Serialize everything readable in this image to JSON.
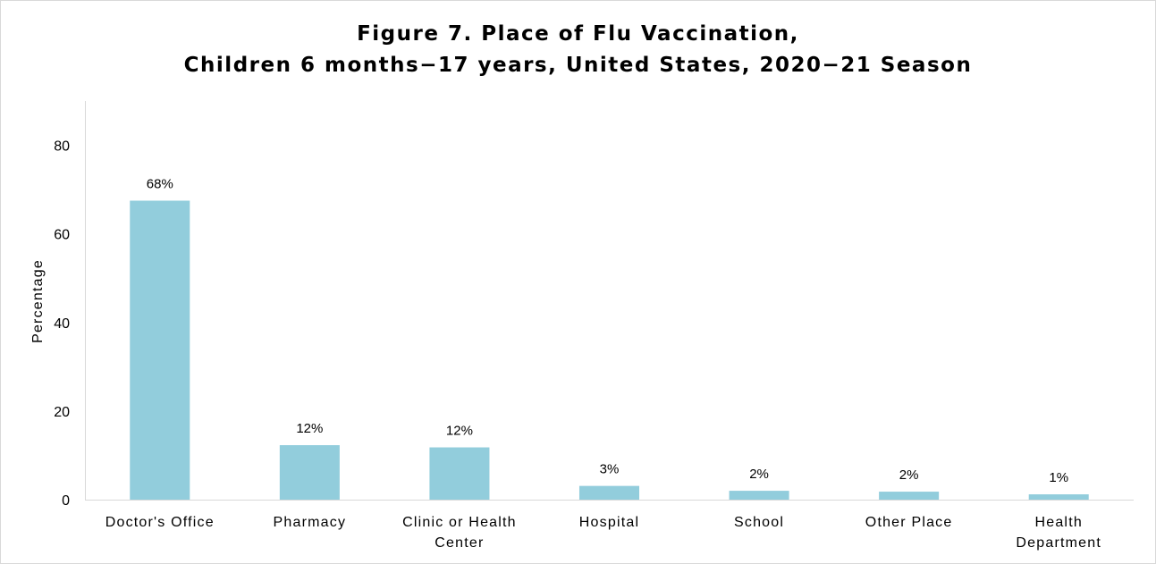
{
  "chart_data": {
    "type": "bar",
    "title": [
      "Figure 7. Place of Flu Vaccination,",
      "Children 6 months−17 years, United States, 2020−21 Season"
    ],
    "ylabel": "Percentage",
    "xlabel": "",
    "ylim": [
      0,
      90
    ],
    "yticks": [
      0,
      20,
      40,
      60,
      80
    ],
    "categories": [
      [
        "Doctor's Office"
      ],
      [
        "Pharmacy"
      ],
      [
        "Clinic or Health",
        "Center"
      ],
      [
        "Hospital"
      ],
      [
        "School"
      ],
      [
        "Other Place"
      ],
      [
        "Health",
        "Department"
      ]
    ],
    "values": [
      67.5,
      12.3,
      11.8,
      3.1,
      2.0,
      1.8,
      1.2
    ],
    "data_labels": [
      "68%",
      "12%",
      "12%",
      "3%",
      "2%",
      "2%",
      "1%"
    ],
    "bar_color": "#92cddc",
    "axis_color": "#d9d9d9",
    "grid": false
  }
}
